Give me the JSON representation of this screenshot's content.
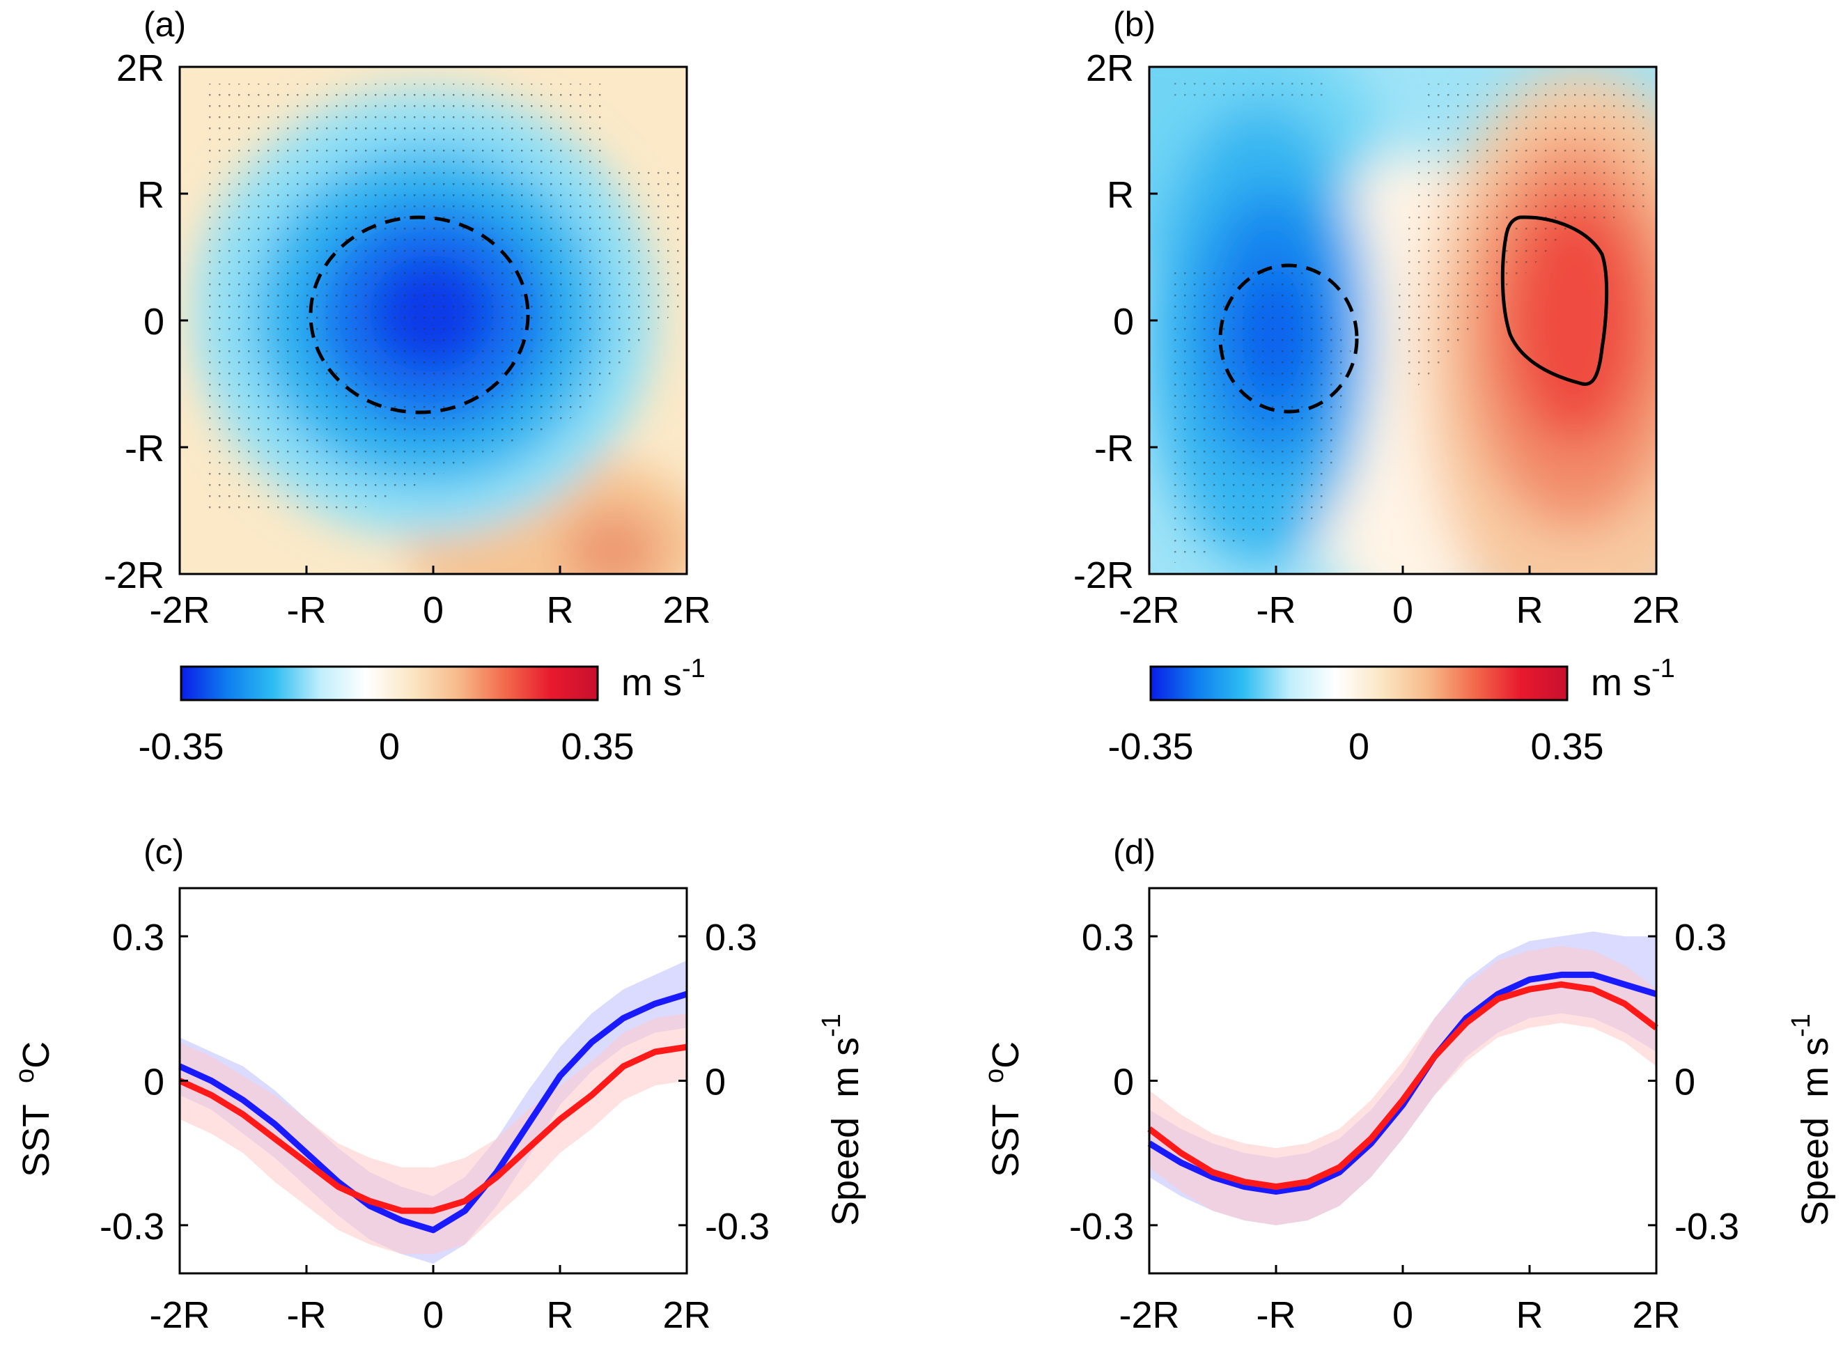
{
  "colors": {
    "cb_stops": [
      "#0a1ee8",
      "#0f7df0",
      "#2ebdf2",
      "#bfeefc",
      "#ffffff",
      "#fbe6c4",
      "#f7b989",
      "#f26a4b",
      "#e8192e",
      "#c8102e"
    ],
    "sst_line": "#1a1aff",
    "speed_line": "#ff1a1a",
    "sst_band": "#c8c8ff",
    "speed_band": "#ffc8c8"
  },
  "panels": {
    "a": {
      "label": "(a)"
    },
    "b": {
      "label": "(b)"
    },
    "c": {
      "label": "(c)"
    },
    "d": {
      "label": "(d)"
    }
  },
  "map_axis_labels": {
    "x": [
      "-2R",
      "-R",
      "0",
      "R",
      "2R"
    ],
    "y": [
      "2R",
      "R",
      "0",
      "-R",
      "-2R"
    ]
  },
  "colorbar": {
    "ticks": [
      "-0.35",
      "0",
      "0.35"
    ],
    "unit_main": "m s",
    "unit_sup": "-1"
  },
  "line_axes": {
    "x": [
      "-2R",
      "-R",
      "0",
      "R",
      "2R"
    ],
    "y_left": [
      "0.3",
      "0",
      "-0.3"
    ],
    "y_right": [
      "0.3",
      "0",
      "-0.3"
    ],
    "ylabel_left": "SST",
    "ylabel_left_unit": "o",
    "ylabel_left_unit2": "C",
    "ylabel_right": "Speed",
    "ylabel_right_unit": "m s",
    "ylabel_right_sup": "-1"
  },
  "chart_data": [
    {
      "panel": "a",
      "type": "heatmap",
      "x_range": [
        -2,
        2
      ],
      "y_range": [
        -2,
        2
      ],
      "clim": [
        -0.35,
        0.35
      ],
      "description_values": {
        "center_min": -0.33,
        "dashed_contour_level": -0.2
      }
    },
    {
      "panel": "b",
      "type": "heatmap",
      "x_range": [
        -2,
        2
      ],
      "y_range": [
        -2,
        2
      ],
      "clim": [
        -0.35,
        0.35
      ],
      "description_values": {
        "negative_core": -0.25,
        "positive_core": 0.27
      }
    },
    {
      "panel": "c",
      "type": "line",
      "xlim": [
        -2,
        2
      ],
      "ylim": [
        -0.4,
        0.4
      ],
      "x": [
        -2,
        -1.75,
        -1.5,
        -1.25,
        -1,
        -0.75,
        -0.5,
        -0.25,
        0,
        0.25,
        0.5,
        0.75,
        1,
        1.25,
        1.5,
        1.75,
        2
      ],
      "series": [
        {
          "key": "sst",
          "values": [
            0.03,
            0.0,
            -0.04,
            -0.09,
            -0.15,
            -0.21,
            -0.26,
            -0.29,
            -0.31,
            -0.27,
            -0.19,
            -0.09,
            0.01,
            0.08,
            0.13,
            0.16,
            0.18
          ],
          "band": [
            0.06,
            0.06,
            0.07,
            0.07,
            0.07,
            0.07,
            0.07,
            0.07,
            0.07,
            0.07,
            0.07,
            0.07,
            0.06,
            0.06,
            0.06,
            0.06,
            0.07
          ]
        },
        {
          "key": "speed",
          "values": [
            0.0,
            -0.03,
            -0.07,
            -0.12,
            -0.17,
            -0.22,
            -0.25,
            -0.27,
            -0.27,
            -0.25,
            -0.2,
            -0.14,
            -0.08,
            -0.03,
            0.03,
            0.06,
            0.07
          ],
          "band": [
            0.08,
            0.08,
            0.08,
            0.09,
            0.09,
            0.09,
            0.09,
            0.09,
            0.09,
            0.09,
            0.08,
            0.08,
            0.07,
            0.07,
            0.07,
            0.07,
            0.07
          ]
        }
      ]
    },
    {
      "panel": "d",
      "type": "line",
      "xlim": [
        -2,
        2
      ],
      "ylim": [
        -0.4,
        0.4
      ],
      "x": [
        -2,
        -1.75,
        -1.5,
        -1.25,
        -1,
        -0.75,
        -0.5,
        -0.25,
        0,
        0.25,
        0.5,
        0.75,
        1,
        1.25,
        1.5,
        1.75,
        2
      ],
      "series": [
        {
          "key": "sst",
          "values": [
            -0.13,
            -0.17,
            -0.2,
            -0.22,
            -0.23,
            -0.22,
            -0.19,
            -0.13,
            -0.05,
            0.05,
            0.13,
            0.18,
            0.21,
            0.22,
            0.22,
            0.2,
            0.18
          ],
          "band": [
            0.07,
            0.07,
            0.07,
            0.07,
            0.07,
            0.07,
            0.07,
            0.07,
            0.07,
            0.08,
            0.08,
            0.08,
            0.08,
            0.08,
            0.09,
            0.1,
            0.12
          ]
        },
        {
          "key": "speed",
          "values": [
            -0.1,
            -0.15,
            -0.19,
            -0.21,
            -0.22,
            -0.21,
            -0.18,
            -0.12,
            -0.04,
            0.05,
            0.12,
            0.17,
            0.19,
            0.2,
            0.19,
            0.16,
            0.11
          ],
          "band": [
            0.08,
            0.08,
            0.08,
            0.08,
            0.08,
            0.08,
            0.08,
            0.08,
            0.08,
            0.08,
            0.08,
            0.08,
            0.08,
            0.08,
            0.08,
            0.08,
            0.08
          ]
        }
      ]
    }
  ]
}
